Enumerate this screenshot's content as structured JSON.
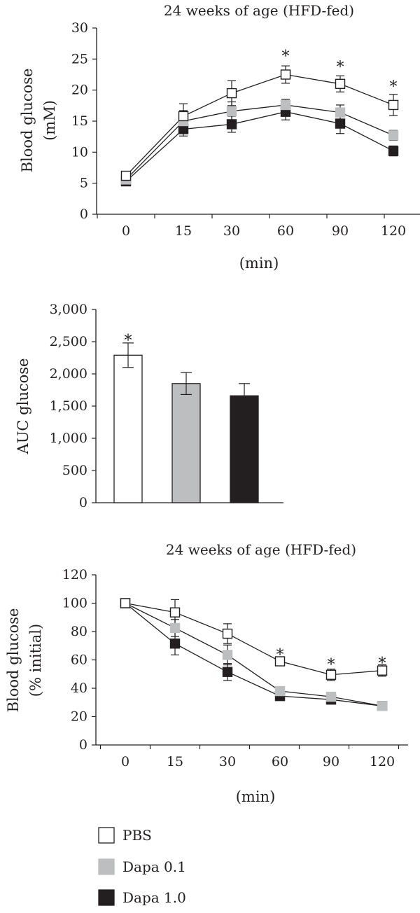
{
  "series_styles": [
    {
      "name": "PBS",
      "fill": "#ffffff",
      "stroke": "#231f20"
    },
    {
      "name": "Dapa 0.1",
      "fill": "#bcbec0",
      "stroke": "#bcbec0"
    },
    {
      "name": "Dapa 1.0",
      "fill": "#231f20",
      "stroke": "#231f20"
    }
  ],
  "chart_data": [
    {
      "type": "line",
      "title": "24 weeks of age (HFD-fed)",
      "ylabel_line1": "Blood glucose",
      "ylabel_line2": "(mM)",
      "xlabel": "(min)",
      "categories": [
        "0",
        "15",
        "30",
        "60",
        "90",
        "120"
      ],
      "ylim": [
        0,
        30
      ],
      "yticks": [
        "0",
        "5",
        "10",
        "15",
        "20",
        "25",
        "30"
      ],
      "ytick_values": [
        0,
        5,
        10,
        15,
        20,
        25,
        30
      ],
      "series": [
        {
          "values": [
            6.2,
            15.8,
            19.5,
            22.5,
            21.0,
            17.6
          ],
          "errors": [
            0.4,
            2.0,
            2.0,
            1.4,
            1.3,
            1.7
          ]
        },
        {
          "values": [
            5.6,
            15.0,
            16.6,
            17.6,
            16.4,
            12.7
          ],
          "errors": [
            0.3,
            1.7,
            1.5,
            0.9,
            1.2,
            0.8
          ]
        },
        {
          "values": [
            5.3,
            13.7,
            14.5,
            16.5,
            14.6,
            10.2
          ],
          "errors": [
            0.3,
            1.1,
            1.3,
            1.3,
            1.6,
            0.8
          ]
        }
      ],
      "annotations": [
        {
          "category": "60",
          "text": "*",
          "value": 26.2
        },
        {
          "category": "90",
          "text": "*",
          "value": 24.5
        },
        {
          "category": "120",
          "text": "*",
          "value": 21.3
        }
      ]
    },
    {
      "type": "bar",
      "ylabel": "AUC glucose",
      "ylim": [
        0,
        3000
      ],
      "yticks": [
        "0",
        "500",
        "1,000",
        "1,500",
        "2,000",
        "2,500",
        "3,000"
      ],
      "ytick_values": [
        0,
        500,
        1000,
        1500,
        2000,
        2500,
        3000
      ],
      "values": [
        2290,
        1850,
        1660
      ],
      "errors": [
        190,
        170,
        190
      ],
      "annotations": [
        {
          "bar": 0,
          "text": "*",
          "value": 2590
        }
      ]
    },
    {
      "type": "line",
      "title": "24 weeks of age (HFD-fed)",
      "ylabel_line1": "Blood glucose",
      "ylabel_line2": "(% initial)",
      "xlabel": "(min)",
      "categories": [
        "0",
        "15",
        "30",
        "60",
        "90",
        "120"
      ],
      "ylim": [
        0,
        120
      ],
      "yticks": [
        "0",
        "20",
        "40",
        "60",
        "80",
        "100",
        "120"
      ],
      "ytick_values": [
        0,
        20,
        40,
        60,
        80,
        100,
        120
      ],
      "series": [
        {
          "values": [
            100,
            93.5,
            78.5,
            59,
            49.5,
            52.5
          ],
          "errors": [
            0,
            9,
            7,
            2,
            4,
            4
          ]
        },
        {
          "values": [
            100,
            82.5,
            63.5,
            38,
            34,
            27.5
          ],
          "errors": [
            0,
            6,
            7,
            3,
            3,
            2
          ]
        },
        {
          "values": [
            100,
            71.5,
            51.5,
            34.5,
            32,
            27.5
          ],
          "errors": [
            0,
            8,
            6,
            3,
            3,
            2
          ]
        }
      ],
      "annotations": [
        {
          "category": "60",
          "text": "*",
          "value": 67
        },
        {
          "category": "90",
          "text": "*",
          "value": 60
        },
        {
          "category": "120",
          "text": "*",
          "value": 61
        }
      ]
    }
  ],
  "legend": [
    {
      "label": "PBS"
    },
    {
      "label": "Dapa 0.1"
    },
    {
      "label": "Dapa 1.0"
    }
  ]
}
